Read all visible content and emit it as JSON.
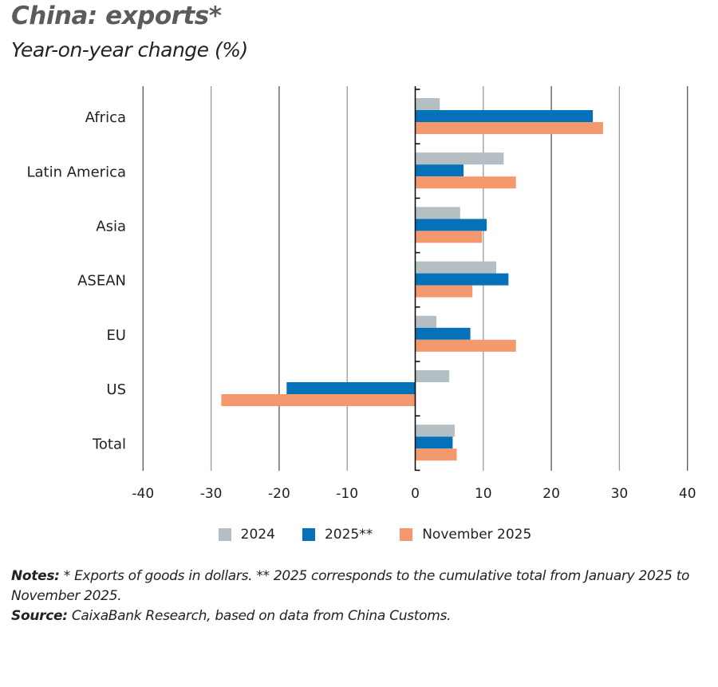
{
  "chart_data": {
    "type": "bar",
    "orientation": "horizontal",
    "title": "China: exports*",
    "subtitle": "Year-on-year change (%)",
    "categories": [
      "Africa",
      "Latin America",
      "Asia",
      "ASEAN",
      "EU",
      "US",
      "Total"
    ],
    "series": [
      {
        "name": "2024",
        "color": "#b3bfc2",
        "values": [
          3.6,
          13.0,
          6.6,
          11.9,
          3.1,
          5.0,
          5.8
        ]
      },
      {
        "name": "2025**",
        "color": "#0571b8",
        "values": [
          26.1,
          7.1,
          10.5,
          13.7,
          8.1,
          -18.9,
          5.5
        ]
      },
      {
        "name": "November 2025",
        "color": "#f3996d",
        "values": [
          27.6,
          14.8,
          9.8,
          8.4,
          14.8,
          -28.5,
          6.1
        ]
      }
    ],
    "xlim": [
      -40,
      40
    ],
    "xticks": [
      "-40",
      "-30",
      "-20",
      "-10",
      "0",
      "10",
      "20",
      "30",
      "40"
    ],
    "grid": true,
    "legend_position": "bottom"
  },
  "notes": {
    "notes_label": "Notes:",
    "notes_text": " * Exports of goods in dollars. ** 2025 corresponds to the cumulative total from January 2025 to November 2025.",
    "source_label": "Source:",
    "source_text": " CaixaBank Research, based on data from China Customs."
  }
}
